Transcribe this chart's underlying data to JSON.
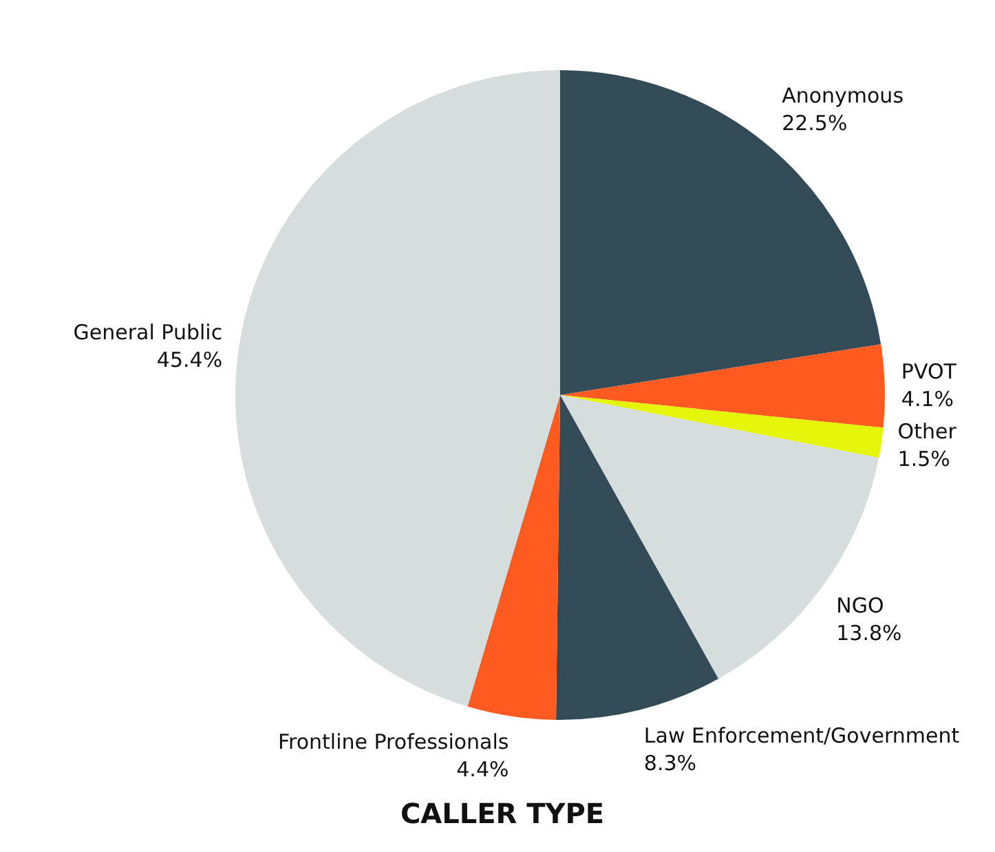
{
  "chart_data": {
    "type": "pie",
    "title": "CALLER TYPE",
    "categories": [
      "Anonymous",
      "PVOT",
      "Other",
      "NGO",
      "Law Enforcement/Government",
      "Frontline Professionals",
      "General Public"
    ],
    "values": [
      22.5,
      4.1,
      1.5,
      13.8,
      8.3,
      4.4,
      45.4
    ],
    "colors": [
      "#334a57",
      "#ff5a1f",
      "#e5f50a",
      "#d5dedd",
      "#334a57",
      "#ff5a1f",
      "#d5dedd"
    ],
    "value_labels": [
      "22.5%",
      "4.1%",
      "1.5%",
      "13.8%",
      "8.3%",
      "4.4%",
      "45.4%"
    ]
  }
}
